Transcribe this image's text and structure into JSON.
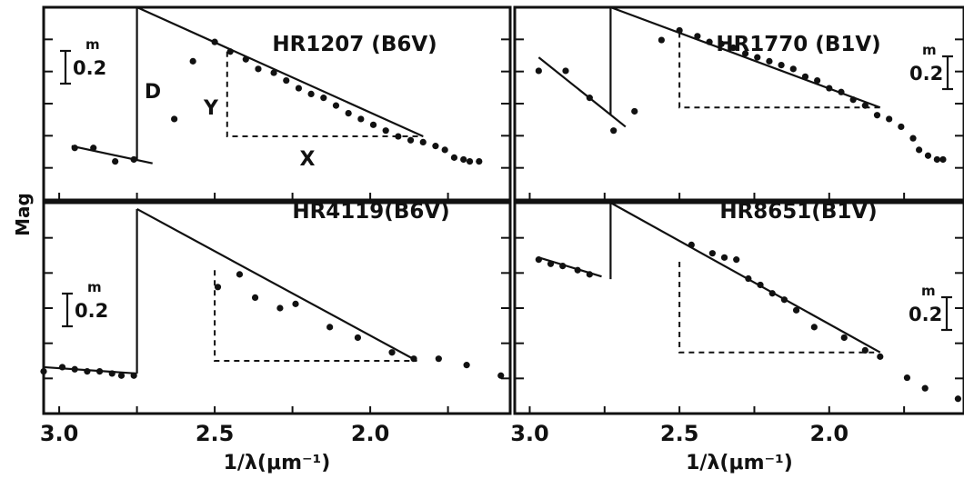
{
  "figure": {
    "ylabel": "Mag"
  },
  "chart_data": [
    {
      "type": "scatter",
      "title": "HR1207 (B6V)",
      "xlabel": "",
      "ylabel": "Mag",
      "xlim": [
        3.05,
        1.55
      ],
      "ylim": [
        0.0,
        1.0
      ],
      "y_axis_inverted_magnitude": true,
      "scale_bar": {
        "value": "0.2",
        "unit": "m"
      },
      "annotations": [
        "D",
        "Y",
        "X"
      ],
      "points": [
        [
          2.95,
          0.27
        ],
        [
          2.89,
          0.27
        ],
        [
          2.82,
          0.2
        ],
        [
          2.76,
          0.21
        ],
        [
          2.63,
          0.42
        ],
        [
          2.57,
          0.72
        ],
        [
          2.5,
          0.82
        ],
        [
          2.45,
          0.77
        ],
        [
          2.4,
          0.73
        ],
        [
          2.36,
          0.68
        ],
        [
          2.31,
          0.66
        ],
        [
          2.27,
          0.62
        ],
        [
          2.23,
          0.58
        ],
        [
          2.19,
          0.55
        ],
        [
          2.15,
          0.53
        ],
        [
          2.11,
          0.49
        ],
        [
          2.07,
          0.45
        ],
        [
          2.03,
          0.42
        ],
        [
          1.99,
          0.39
        ],
        [
          1.95,
          0.36
        ],
        [
          1.91,
          0.33
        ],
        [
          1.87,
          0.31
        ],
        [
          1.83,
          0.3
        ],
        [
          1.79,
          0.28
        ],
        [
          1.76,
          0.26
        ],
        [
          1.73,
          0.22
        ],
        [
          1.7,
          0.21
        ],
        [
          1.68,
          0.2
        ],
        [
          1.65,
          0.2
        ]
      ],
      "fit_lines": [
        {
          "x": [
            2.96,
            2.7
          ],
          "y": [
            0.28,
            0.19
          ]
        },
        {
          "x": [
            2.75,
            1.83
          ],
          "y": [
            1.0,
            0.33
          ]
        }
      ],
      "dashed_box": {
        "x": [
          2.46,
          1.83
        ],
        "y": [
          0.33,
          0.77
        ]
      }
    },
    {
      "type": "scatter",
      "title": "HR1770 (B1V)",
      "xlabel": "",
      "ylabel": "",
      "xlim": [
        3.05,
        1.55
      ],
      "ylim": [
        0.0,
        1.0
      ],
      "scale_bar": {
        "value": "0.2",
        "unit": "m"
      },
      "points": [
        [
          2.97,
          0.67
        ],
        [
          2.88,
          0.67
        ],
        [
          2.8,
          0.53
        ],
        [
          2.72,
          0.36
        ],
        [
          2.65,
          0.46
        ],
        [
          2.56,
          0.83
        ],
        [
          2.5,
          0.88
        ],
        [
          2.44,
          0.85
        ],
        [
          2.4,
          0.82
        ],
        [
          2.36,
          0.81
        ],
        [
          2.32,
          0.79
        ],
        [
          2.28,
          0.76
        ],
        [
          2.24,
          0.74
        ],
        [
          2.2,
          0.72
        ],
        [
          2.16,
          0.7
        ],
        [
          2.12,
          0.68
        ],
        [
          2.08,
          0.64
        ],
        [
          2.04,
          0.62
        ],
        [
          2.0,
          0.58
        ],
        [
          1.96,
          0.56
        ],
        [
          1.92,
          0.52
        ],
        [
          1.88,
          0.49
        ],
        [
          1.84,
          0.44
        ],
        [
          1.8,
          0.42
        ],
        [
          1.76,
          0.38
        ],
        [
          1.72,
          0.32
        ],
        [
          1.7,
          0.26
        ],
        [
          1.67,
          0.23
        ],
        [
          1.64,
          0.21
        ],
        [
          1.62,
          0.21
        ]
      ],
      "fit_lines": [
        {
          "x": [
            2.97,
            2.68
          ],
          "y": [
            0.74,
            0.38
          ]
        },
        {
          "x": [
            2.73,
            1.83
          ],
          "y": [
            1.0,
            0.48
          ]
        }
      ],
      "dashed_box": {
        "x": [
          2.5,
          1.83
        ],
        "y": [
          0.48,
          0.87
        ]
      }
    },
    {
      "type": "scatter",
      "title": "HR4119(B6V)",
      "xlabel": "1/λ(μm⁻¹)",
      "ylabel": "Mag",
      "xlim": [
        3.05,
        1.55
      ],
      "ylim": [
        0.0,
        1.0
      ],
      "xticks": [
        "3.0",
        "2.5",
        "2.0"
      ],
      "scale_bar": {
        "value": "0.2",
        "unit": "m"
      },
      "points": [
        [
          3.05,
          0.2
        ],
        [
          2.99,
          0.22
        ],
        [
          2.95,
          0.21
        ],
        [
          2.91,
          0.2
        ],
        [
          2.87,
          0.2
        ],
        [
          2.83,
          0.19
        ],
        [
          2.8,
          0.18
        ],
        [
          2.76,
          0.18
        ],
        [
          2.49,
          0.6
        ],
        [
          2.42,
          0.66
        ],
        [
          2.37,
          0.55
        ],
        [
          2.29,
          0.5
        ],
        [
          2.24,
          0.52
        ],
        [
          2.13,
          0.41
        ],
        [
          2.04,
          0.36
        ],
        [
          1.93,
          0.29
        ],
        [
          1.86,
          0.26
        ],
        [
          1.78,
          0.26
        ],
        [
          1.69,
          0.23
        ],
        [
          1.58,
          0.18
        ]
      ],
      "fit_lines": [
        {
          "x": [
            3.05,
            2.75
          ],
          "y": [
            0.22,
            0.19
          ]
        },
        {
          "x": [
            2.75,
            1.85
          ],
          "y": [
            0.97,
            0.25
          ]
        }
      ],
      "dashed_box": {
        "x": [
          2.5,
          1.85
        ],
        "y": [
          0.25,
          0.68
        ]
      }
    },
    {
      "type": "scatter",
      "title": "HR8651(B1V)",
      "xlabel": "1/λ(μm⁻¹)",
      "ylabel": "",
      "xlim": [
        3.05,
        1.55
      ],
      "ylim": [
        0.0,
        1.0
      ],
      "xticks": [
        "3.0",
        "2.5",
        "2.0"
      ],
      "scale_bar": {
        "value": "0.2",
        "unit": "m"
      },
      "points": [
        [
          2.97,
          0.73
        ],
        [
          2.93,
          0.71
        ],
        [
          2.89,
          0.7
        ],
        [
          2.84,
          0.68
        ],
        [
          2.8,
          0.66
        ],
        [
          2.46,
          0.8
        ],
        [
          2.39,
          0.76
        ],
        [
          2.35,
          0.74
        ],
        [
          2.31,
          0.73
        ],
        [
          2.27,
          0.64
        ],
        [
          2.23,
          0.61
        ],
        [
          2.19,
          0.57
        ],
        [
          2.15,
          0.54
        ],
        [
          2.11,
          0.49
        ],
        [
          2.05,
          0.41
        ],
        [
          1.95,
          0.36
        ],
        [
          1.88,
          0.3
        ],
        [
          1.83,
          0.27
        ],
        [
          1.74,
          0.17
        ],
        [
          1.68,
          0.12
        ],
        [
          1.57,
          0.07
        ]
      ],
      "fit_lines": [
        {
          "x": [
            2.97,
            2.76
          ],
          "y": [
            0.74,
            0.65
          ]
        },
        {
          "x": [
            2.73,
            1.83
          ],
          "y": [
            1.0,
            0.29
          ]
        }
      ],
      "dashed_box": {
        "x": [
          2.5,
          1.85
        ],
        "y": [
          0.29,
          0.72
        ]
      }
    }
  ]
}
